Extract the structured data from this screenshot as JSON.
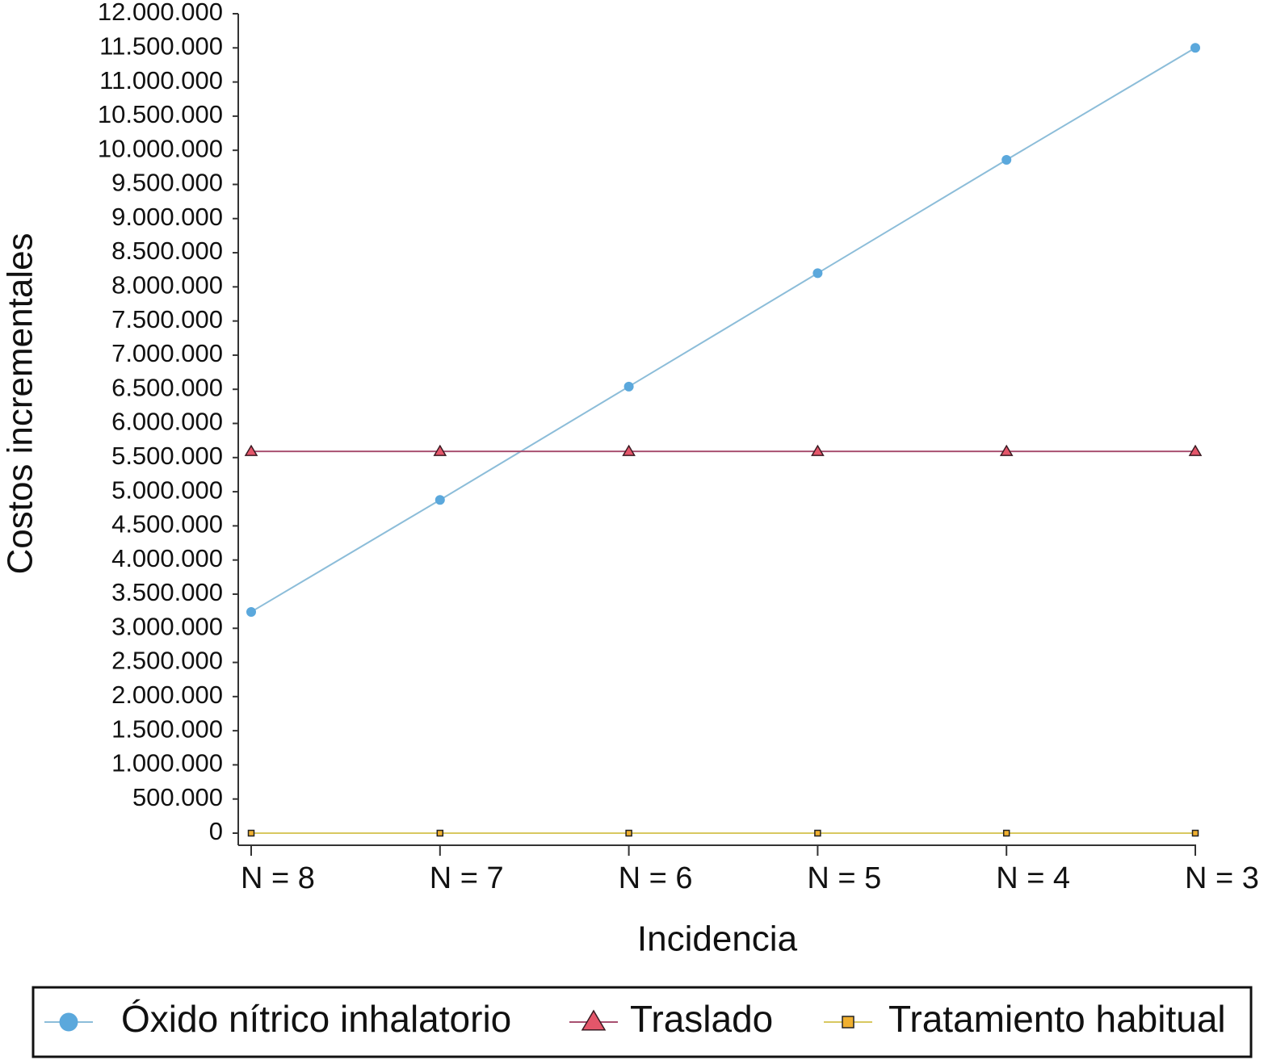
{
  "chart_data": {
    "type": "line",
    "x_label": "Incidencia",
    "y_label": "Costos incrementales",
    "categories": [
      "N = 8",
      "N = 7",
      "N = 6",
      "N = 5",
      "N = 4",
      "N = 3"
    ],
    "ylim": [
      0,
      12000000
    ],
    "yticks": [
      {
        "value": 0,
        "label": "0"
      },
      {
        "value": 500000,
        "label": "500.000"
      },
      {
        "value": 1000000,
        "label": "1.000.000"
      },
      {
        "value": 1500000,
        "label": "1.500.000"
      },
      {
        "value": 2000000,
        "label": "2.000.000"
      },
      {
        "value": 2500000,
        "label": "2.500.000"
      },
      {
        "value": 3000000,
        "label": "3.000.000"
      },
      {
        "value": 3500000,
        "label": "3.500.000"
      },
      {
        "value": 4000000,
        "label": "4.000.000"
      },
      {
        "value": 4500000,
        "label": "4.500.000"
      },
      {
        "value": 5000000,
        "label": "5.000.000"
      },
      {
        "value": 5500000,
        "label": "5.500.000"
      },
      {
        "value": 6000000,
        "label": "6.000.000"
      },
      {
        "value": 6500000,
        "label": "6.500.000"
      },
      {
        "value": 7000000,
        "label": "7.000.000"
      },
      {
        "value": 7500000,
        "label": "7.500.000"
      },
      {
        "value": 8000000,
        "label": "8.000.000"
      },
      {
        "value": 8500000,
        "label": "8.500.000"
      },
      {
        "value": 9000000,
        "label": "9.000.000"
      },
      {
        "value": 9500000,
        "label": "9.500.000"
      },
      {
        "value": 10000000,
        "label": "10.000.000"
      },
      {
        "value": 10500000,
        "label": "10.500.000"
      },
      {
        "value": 11000000,
        "label": "11.000.000"
      },
      {
        "value": 11500000,
        "label": "11.500.000"
      },
      {
        "value": 12000000,
        "label": "12.000.000"
      }
    ],
    "grid": false,
    "legend": "bottom",
    "series": [
      {
        "name": "Óxido nítrico inhalatorio",
        "color": "#5ba8dc",
        "line_color": "#8cbdd9",
        "marker": "circle",
        "values": [
          3240000,
          4880000,
          6540000,
          8200000,
          9860000,
          11500000
        ]
      },
      {
        "name": "Traslado",
        "color": "#e4566a",
        "line_color": "#a85070",
        "marker": "triangle",
        "values": [
          5590000,
          5590000,
          5590000,
          5590000,
          5590000,
          5590000
        ]
      },
      {
        "name": "Tratamiento habitual",
        "color": "#f0b030",
        "line_color": "#d8c860",
        "marker": "square",
        "values": [
          0,
          0,
          0,
          0,
          0,
          0
        ]
      }
    ]
  }
}
